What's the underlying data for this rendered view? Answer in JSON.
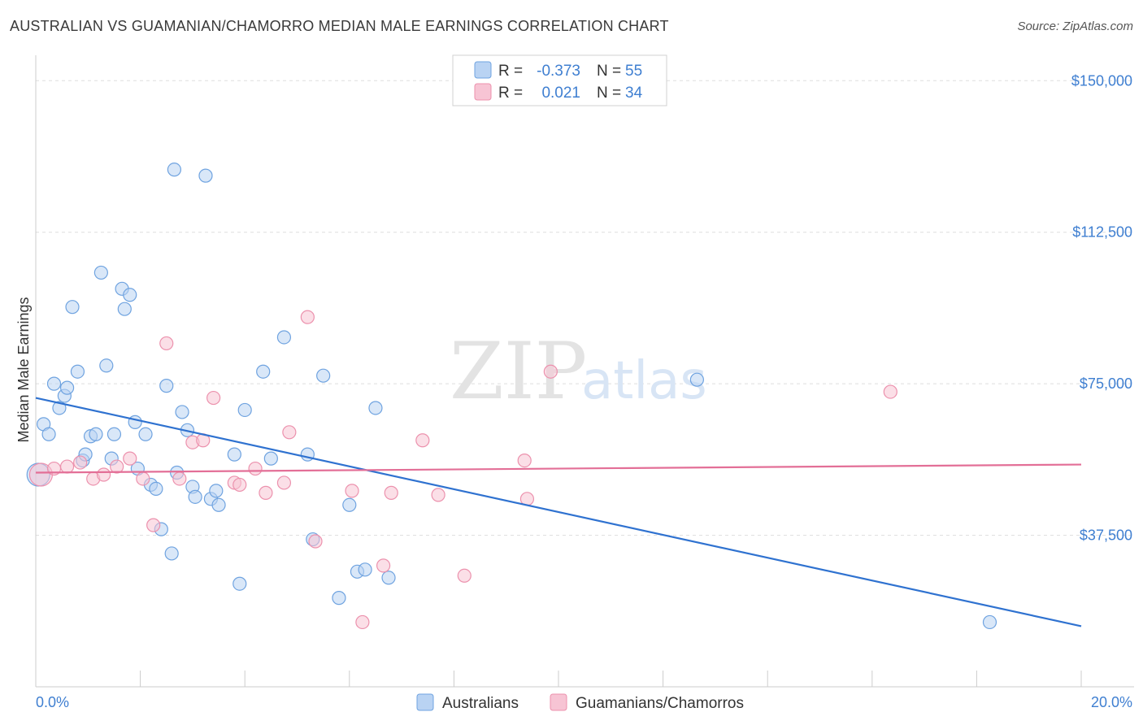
{
  "title": "AUSTRALIAN VS GUAMANIAN/CHAMORRO MEDIAN MALE EARNINGS CORRELATION CHART",
  "source": "Source: ZipAtlas.com",
  "watermark": {
    "zip": "ZIP",
    "atlas": "atlas"
  },
  "colors": {
    "blue": "#6fa3e0",
    "blue_fill": "#b9d3f3",
    "blue_line": "#2f72d0",
    "pink": "#ec91ad",
    "pink_fill": "#f7c4d4",
    "pink_line": "#e36f97",
    "tick_text": "#3f7fd1",
    "grid": "#dddddd"
  },
  "legend": {
    "rows": [
      {
        "r_label": "R = ",
        "r_value": "-0.373",
        "n_label": "N = ",
        "n_value": "55"
      },
      {
        "r_label": "R = ",
        "r_value": "0.021",
        "n_label": "N = ",
        "n_value": "34"
      }
    ]
  },
  "chart_data": {
    "type": "scatter",
    "ylabel": "Median Male Earnings",
    "xlabel": "",
    "xlim": [
      0,
      20
    ],
    "ylim": [
      0,
      157500
    ],
    "x_tick_labels": {
      "left": "0.0%",
      "right": "20.0%"
    },
    "y_ticks": [
      {
        "value": 150000,
        "label": "$150,000"
      },
      {
        "value": 112500,
        "label": "$112,500"
      },
      {
        "value": 75000,
        "label": "$75,000"
      },
      {
        "value": 37500,
        "label": "$37,500"
      }
    ],
    "grid": true,
    "legend_position": "top-center",
    "series": [
      {
        "name": "Australians",
        "color": "#6fa3e0",
        "trend": {
          "x": [
            0,
            20
          ],
          "y": [
            71500,
            15000
          ]
        },
        "points": [
          [
            0.15,
            65000
          ],
          [
            0.25,
            62500
          ],
          [
            0.35,
            75000
          ],
          [
            0.45,
            69000
          ],
          [
            0.55,
            72000
          ],
          [
            0.6,
            74000
          ],
          [
            0.7,
            94000
          ],
          [
            0.8,
            78000
          ],
          [
            0.9,
            56000
          ],
          [
            0.95,
            57500
          ],
          [
            1.05,
            62000
          ],
          [
            1.15,
            62500
          ],
          [
            1.25,
            102500
          ],
          [
            1.35,
            79500
          ],
          [
            1.45,
            56500
          ],
          [
            1.5,
            62500
          ],
          [
            1.65,
            98500
          ],
          [
            1.7,
            93500
          ],
          [
            1.8,
            97000
          ],
          [
            1.9,
            65500
          ],
          [
            1.95,
            54000
          ],
          [
            2.1,
            62500
          ],
          [
            2.2,
            50000
          ],
          [
            2.3,
            49000
          ],
          [
            2.4,
            39000
          ],
          [
            2.5,
            74500
          ],
          [
            2.6,
            33000
          ],
          [
            2.65,
            128000
          ],
          [
            2.7,
            53000
          ],
          [
            2.8,
            68000
          ],
          [
            2.9,
            63500
          ],
          [
            3.0,
            49500
          ],
          [
            3.05,
            47000
          ],
          [
            3.25,
            126500
          ],
          [
            3.35,
            46500
          ],
          [
            3.45,
            48500
          ],
          [
            3.5,
            45000
          ],
          [
            3.8,
            57500
          ],
          [
            3.9,
            25500
          ],
          [
            4.0,
            68500
          ],
          [
            4.35,
            78000
          ],
          [
            4.5,
            56500
          ],
          [
            4.75,
            86500
          ],
          [
            5.2,
            57500
          ],
          [
            5.3,
            36500
          ],
          [
            5.5,
            77000
          ],
          [
            5.8,
            22000
          ],
          [
            6.0,
            45000
          ],
          [
            6.15,
            28500
          ],
          [
            6.3,
            29000
          ],
          [
            6.5,
            69000
          ],
          [
            6.75,
            27000
          ],
          [
            12.65,
            76000
          ],
          [
            18.25,
            16000
          ],
          [
            0.05,
            52500
          ]
        ]
      },
      {
        "name": "Guamanians/Chamorros",
        "color": "#ec91ad",
        "trend": {
          "x": [
            0,
            20
          ],
          "y": [
            53000,
            55000
          ]
        },
        "points": [
          [
            0.1,
            52500
          ],
          [
            0.35,
            54000
          ],
          [
            0.6,
            54500
          ],
          [
            0.85,
            55500
          ],
          [
            1.1,
            51500
          ],
          [
            1.3,
            52500
          ],
          [
            1.55,
            54500
          ],
          [
            1.8,
            56500
          ],
          [
            2.05,
            51500
          ],
          [
            2.25,
            40000
          ],
          [
            2.5,
            85000
          ],
          [
            2.75,
            51500
          ],
          [
            3.0,
            60500
          ],
          [
            3.2,
            61000
          ],
          [
            3.4,
            71500
          ],
          [
            3.8,
            50500
          ],
          [
            3.9,
            50000
          ],
          [
            4.2,
            54000
          ],
          [
            4.4,
            48000
          ],
          [
            4.75,
            50500
          ],
          [
            4.85,
            63000
          ],
          [
            5.2,
            91500
          ],
          [
            5.35,
            36000
          ],
          [
            6.05,
            48500
          ],
          [
            6.25,
            16000
          ],
          [
            6.65,
            30000
          ],
          [
            6.8,
            48000
          ],
          [
            7.4,
            61000
          ],
          [
            7.7,
            47500
          ],
          [
            8.2,
            27500
          ],
          [
            9.35,
            56000
          ],
          [
            9.4,
            46500
          ],
          [
            9.85,
            78000
          ],
          [
            16.35,
            73000
          ]
        ]
      }
    ]
  }
}
